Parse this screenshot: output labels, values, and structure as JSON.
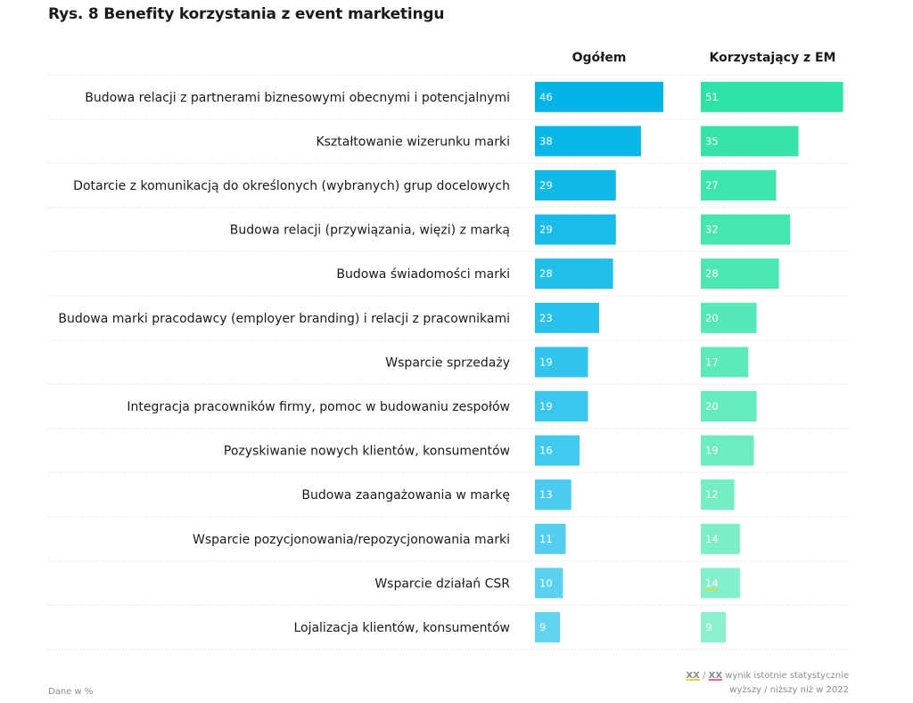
{
  "title": "Rys. 8 Benefity korzystania z event marketingu",
  "chart_data": {
    "type": "bar",
    "orientation": "horizontal",
    "categories": [
      "Budowa relacji z partnerami biznesowymi obecnymi i potencjalnymi",
      "Kształtowanie wizerunku marki",
      "Dotarcie z komunikacją do określonych (wybranych) grup docelowych",
      "Budowa relacji (przywiązania, więzi) z marką",
      "Budowa świadomości marki",
      "Budowa marki pracodawcy (employer branding) i relacji z pracownikami",
      "Wsparcie sprzedaży",
      "Integracja pracowników firmy, pomoc w budowaniu zespołów",
      "Pozyskiwanie nowych klientów, konsumentów",
      "Budowa zaangażowania w markę",
      "Wsparcie pozycjonowania/repozycjonowania marki",
      "Wsparcie działań CSR",
      "Lojalizacja klientów, konsumentów"
    ],
    "series": [
      {
        "name": "Ogółem",
        "values": [
          46,
          38,
          29,
          29,
          28,
          23,
          19,
          19,
          16,
          13,
          11,
          10,
          9
        ],
        "color_start": "#00b4e6",
        "color_end": "#63d3f2"
      },
      {
        "name": "Korzystający z EM",
        "values": [
          51,
          35,
          27,
          32,
          28,
          20,
          17,
          20,
          19,
          12,
          14,
          14,
          9
        ],
        "color_start": "#2ee3a7",
        "color_end": "#8cf0cf"
      }
    ],
    "xlim": [
      0,
      55
    ],
    "grid": false,
    "highlight": {
      "series": 1,
      "index": 11,
      "underline_color": "#e3d53a"
    }
  },
  "legend": {
    "xx_up": "XX",
    "separator": "/",
    "xx_down": "XX",
    "line1_text": "wynik istotnie statystycznie",
    "line2_text": "wyższy / niższy niż w 2022"
  },
  "source_note": "Dane w %"
}
